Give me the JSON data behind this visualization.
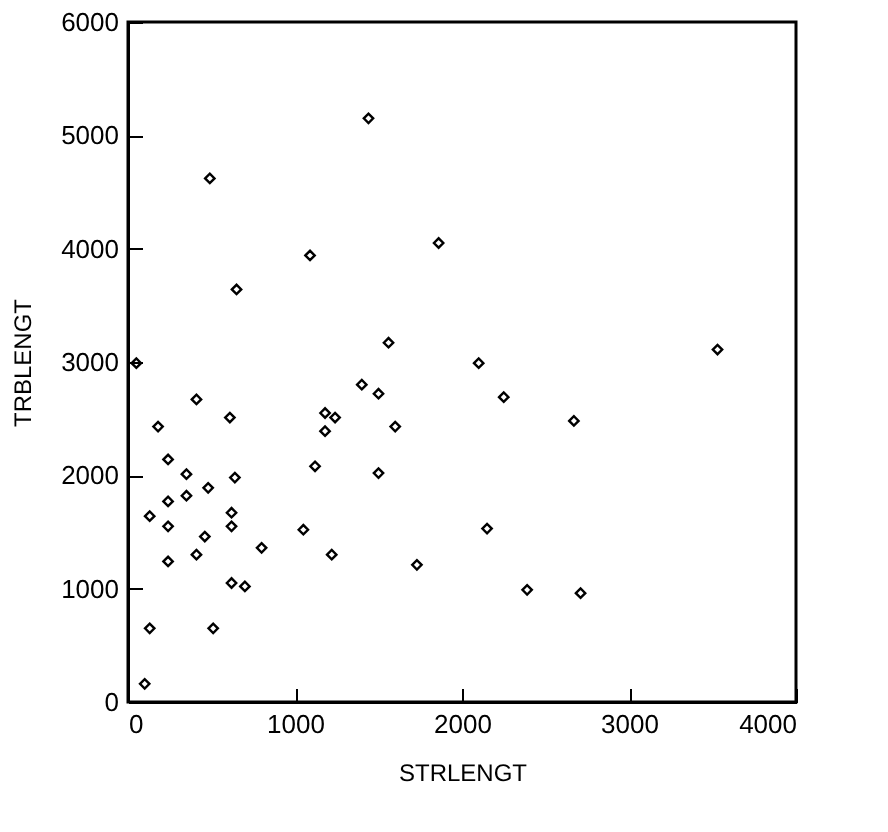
{
  "chart_data": {
    "type": "scatter",
    "xlabel": "STRLENGT",
    "ylabel": "TRBLENGT",
    "marker": "diamond",
    "grid": false,
    "xlim": [
      0,
      4000
    ],
    "xticks": [
      0,
      1000,
      2000,
      3000,
      4000
    ],
    "ylim": [
      0,
      6000
    ],
    "yticks": [
      0,
      1000,
      2000,
      3000,
      4000,
      5000,
      6000
    ],
    "series": [
      {
        "color": "#000000",
        "x": [
          1860,
          1090,
          650,
          50,
          1560,
          1400,
          1500,
          410,
          610,
          1180,
          1240,
          180,
          1180,
          1600,
          240,
          350,
          640,
          1120,
          1500,
          480,
          240,
          130,
          350,
          240,
          620,
          620,
          460,
          410,
          240,
          800,
          1050,
          1220,
          1730,
          620,
          700,
          130,
          510,
          100,
          2100,
          2250,
          2670,
          3530,
          2150,
          2390,
          2710,
          490,
          1440
        ],
        "values": [
          4050,
          3940,
          3640,
          2990,
          3170,
          2800,
          2720,
          2670,
          2510,
          2550,
          2510,
          2430,
          2390,
          2430,
          2140,
          2010,
          1980,
          2080,
          2020,
          1890,
          1770,
          1640,
          1820,
          1550,
          1670,
          1550,
          1460,
          1300,
          1240,
          1360,
          1520,
          1300,
          1210,
          1050,
          1020,
          650,
          650,
          160,
          2990,
          2690,
          2480,
          3110,
          1530,
          990,
          960,
          4620,
          5150
        ]
      }
    ]
  }
}
